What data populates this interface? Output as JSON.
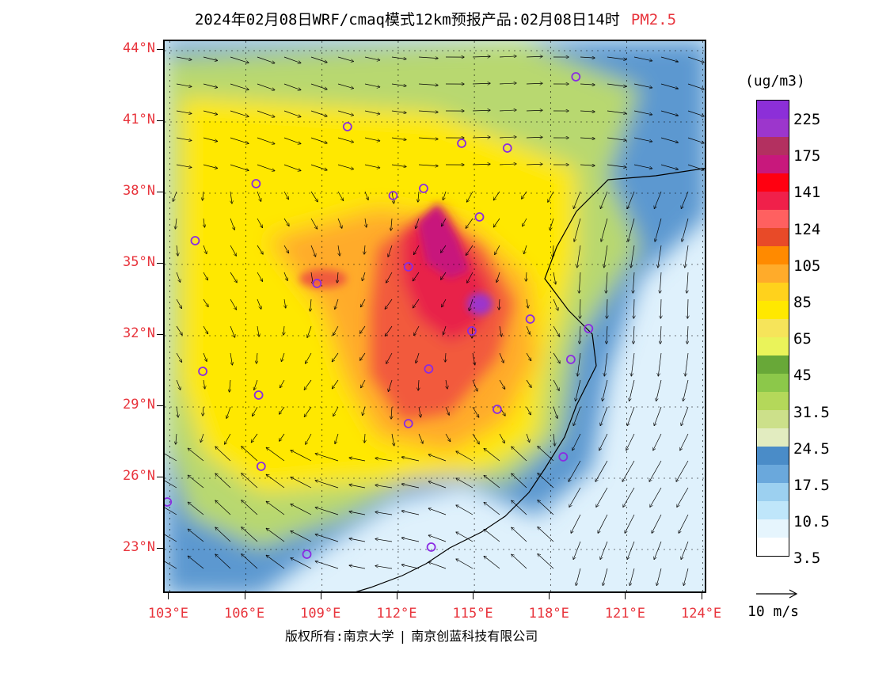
{
  "title": {
    "main": "2024年02月08日WRF/cmaq模式12km预报产品:02月08日14时",
    "pollutant": "PM2.5"
  },
  "latitude_labels": [
    "44°N",
    "41°N",
    "38°N",
    "35°N",
    "32°N",
    "29°N",
    "26°N",
    "23°N"
  ],
  "longitude_labels": [
    "103°E",
    "106°E",
    "109°E",
    "112°E",
    "115°E",
    "118°E",
    "121°E",
    "124°E"
  ],
  "legend": {
    "unit": "(ug/m3)",
    "labels": [
      "225",
      "175",
      "141",
      "124",
      "105",
      "85",
      "65",
      "45",
      "31.5",
      "24.5",
      "17.5",
      "10.5",
      "3.5"
    ],
    "colors": [
      "#8c2fd8",
      "#9c36cc",
      "#b33060",
      "#c8187c",
      "#ff0010",
      "#f0204a",
      "#ff6060",
      "#e84a28",
      "#ff8a00",
      "#ffab2a",
      "#ffd21c",
      "#ffe800",
      "#f6e45a",
      "#eaf35a",
      "#68a838",
      "#8cc84a",
      "#b4d85a",
      "#cce08a",
      "#e2ecc0",
      "#4a8cc8",
      "#6aa8dc",
      "#9cd0f0",
      "#bfe6fa",
      "#e6f5fd",
      "#ffffff"
    ]
  },
  "wind_scale": {
    "label": "10 m/s"
  },
  "copyright": {
    "left": "版权所有:南京大学",
    "right": "南京创蓝科技有限公司"
  },
  "map": {
    "description_colors": {
      "ocean_low": "#dff1fc",
      "land_outline": "#000000",
      "grid": "#000000",
      "city_marker": "#8a2be2"
    },
    "cities": [
      {
        "lon": 119.0,
        "lat": 42.9
      },
      {
        "lon": 110.0,
        "lat": 40.8
      },
      {
        "lon": 114.5,
        "lat": 40.1
      },
      {
        "lon": 116.3,
        "lat": 39.9
      },
      {
        "lon": 106.4,
        "lat": 38.4
      },
      {
        "lon": 111.8,
        "lat": 37.9
      },
      {
        "lon": 113.0,
        "lat": 38.2
      },
      {
        "lon": 115.2,
        "lat": 37.0
      },
      {
        "lon": 104.0,
        "lat": 36.0
      },
      {
        "lon": 108.8,
        "lat": 34.2
      },
      {
        "lon": 112.4,
        "lat": 34.9
      },
      {
        "lon": 114.9,
        "lat": 32.2
      },
      {
        "lon": 117.2,
        "lat": 32.7
      },
      {
        "lon": 119.5,
        "lat": 32.3
      },
      {
        "lon": 118.8,
        "lat": 31.0
      },
      {
        "lon": 104.3,
        "lat": 30.5
      },
      {
        "lon": 113.2,
        "lat": 30.6
      },
      {
        "lon": 106.5,
        "lat": 29.5
      },
      {
        "lon": 112.4,
        "lat": 28.3
      },
      {
        "lon": 115.9,
        "lat": 28.9
      },
      {
        "lon": 118.5,
        "lat": 26.9
      },
      {
        "lon": 106.6,
        "lat": 26.5
      },
      {
        "lon": 102.9,
        "lat": 25.0
      },
      {
        "lon": 108.4,
        "lat": 22.8
      },
      {
        "lon": 113.3,
        "lat": 23.1
      }
    ],
    "extent": {
      "lon_min": 102.8,
      "lon_max": 124.2,
      "lat_min": 21.1,
      "lat_max": 44.4
    }
  }
}
